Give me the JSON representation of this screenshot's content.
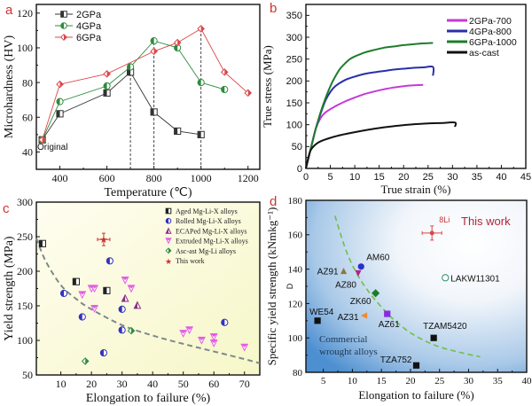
{
  "chart_data": [
    {
      "panel": "a",
      "type": "line",
      "title": "",
      "xlabel": "Temperature (℃)",
      "ylabel": "Microhardness (HV)",
      "xlim": [
        300,
        1250
      ],
      "ylim": [
        30,
        125
      ],
      "xticks": [
        400,
        600,
        800,
        1000,
        1200
      ],
      "yticks": [
        40,
        60,
        80,
        100,
        120
      ],
      "legend_position": "top-left",
      "annotation": "Original",
      "vlines": [
        700,
        800,
        1000
      ],
      "series": [
        {
          "name": "2GPa",
          "color": "#333333",
          "marker": "half-square",
          "x": [
            325,
            400,
            600,
            700,
            800,
            900,
            1000
          ],
          "y": [
            47,
            62,
            74,
            86,
            63,
            52,
            50
          ]
        },
        {
          "name": "4GPa",
          "color": "#2e8b3e",
          "marker": "half-circle",
          "x": [
            325,
            400,
            600,
            700,
            800,
            900,
            1000,
            1100
          ],
          "y": [
            47,
            69,
            78,
            89,
            104,
            100,
            80,
            76
          ]
        },
        {
          "name": "6GPa",
          "color": "#d9474a",
          "marker": "half-diamond",
          "x": [
            325,
            400,
            600,
            800,
            900,
            1000,
            1100,
            1200
          ],
          "y": [
            47,
            79,
            85,
            98,
            103,
            111,
            86,
            74
          ]
        }
      ]
    },
    {
      "panel": "b",
      "type": "line",
      "title": "",
      "xlabel": "True strain (%)",
      "ylabel": "True stress (MPa)",
      "xlim": [
        0,
        45
      ],
      "ylim": [
        0,
        375
      ],
      "xticks": [
        0,
        5,
        10,
        15,
        20,
        25,
        30,
        35,
        40,
        45
      ],
      "yticks": [
        0,
        50,
        100,
        150,
        200,
        250,
        300,
        350
      ],
      "legend_position": "top-right",
      "series": [
        {
          "name": "2GPa-700",
          "color": "#c43ad6",
          "x": [
            0,
            1,
            2,
            3,
            4,
            6,
            8,
            10,
            12,
            14,
            16,
            18,
            20,
            22,
            24
          ],
          "y": [
            0,
            45,
            90,
            115,
            128,
            142,
            153,
            162,
            170,
            176,
            181,
            185,
            188,
            190,
            191
          ]
        },
        {
          "name": "4GPa-800",
          "color": "#2a2fa8",
          "x": [
            0,
            1,
            2,
            3,
            4,
            5,
            6,
            8,
            10,
            12,
            14,
            16,
            18,
            20,
            22,
            24,
            26,
            26
          ],
          "y": [
            0,
            45,
            90,
            125,
            155,
            175,
            188,
            202,
            210,
            216,
            220,
            223,
            226,
            228,
            230,
            231,
            232,
            212
          ]
        },
        {
          "name": "6GPa-1000",
          "color": "#1e7d2a",
          "x": [
            0,
            1,
            2,
            3,
            4,
            5,
            6,
            7,
            8,
            9,
            10,
            12,
            14,
            16,
            18,
            20,
            22,
            24,
            26
          ],
          "y": [
            0,
            45,
            90,
            128,
            160,
            188,
            210,
            228,
            240,
            250,
            256,
            265,
            271,
            276,
            279,
            282,
            284,
            286,
            287
          ]
        },
        {
          "name": "as-cast",
          "color": "#111111",
          "x": [
            0,
            0.5,
            1,
            2,
            3,
            5,
            7,
            10,
            13,
            16,
            19,
            22,
            25,
            28,
            30.5,
            30.5
          ],
          "y": [
            0,
            25,
            42,
            55,
            62,
            70,
            76,
            83,
            89,
            94,
            98,
            101,
            103,
            104,
            105,
            95
          ]
        }
      ]
    },
    {
      "panel": "c",
      "type": "scatter",
      "title": "",
      "xlabel": "Elongation to failure (%)",
      "ylabel": "Yield strength (MPa)",
      "xlim": [
        2,
        75
      ],
      "ylim": [
        50,
        300
      ],
      "xticks": [
        10,
        20,
        30,
        40,
        50,
        60,
        70
      ],
      "yticks": [
        50,
        100,
        150,
        200,
        250,
        300
      ],
      "legend_position": "top-right",
      "trend_curve": {
        "x": [
          2,
          5,
          10,
          15,
          20,
          30,
          40,
          50,
          60,
          70,
          75
        ],
        "y": [
          248,
          215,
          180,
          160,
          145,
          122,
          107,
          95,
          84,
          73,
          67
        ]
      },
      "series": [
        {
          "name": "Aged Mg-Li-X alloys",
          "color": "#222222",
          "marker": "half-square",
          "x": [
            4,
            15,
            25
          ],
          "y": [
            240,
            185,
            172
          ]
        },
        {
          "name": "Rolled Mg-Li-X alloys",
          "color": "#3333bb",
          "marker": "half-circle",
          "x": [
            11,
            17,
            24,
            26,
            30,
            30,
            63.5
          ],
          "y": [
            168,
            134,
            82,
            215,
            145,
            115,
            126
          ]
        },
        {
          "name": "ECAPed Mg-Li-X alloys",
          "color": "#8a2a8a",
          "marker": "half-triangle-up",
          "x": [
            31,
            35
          ],
          "y": [
            161,
            151
          ]
        },
        {
          "name": "Extruded Mg-Li-X alloys",
          "color": "#e25be2",
          "marker": "half-triangle-down",
          "x": [
            17,
            20,
            21,
            21,
            31,
            33,
            50,
            52,
            56,
            60,
            60,
            70
          ],
          "y": [
            166,
            175,
            175,
            146,
            187,
            175,
            110,
            115,
            100,
            105,
            96,
            90
          ]
        },
        {
          "name": "Asc-ast Mg-Li alloys",
          "color": "#2e8b3e",
          "marker": "half-diamond",
          "x": [
            18,
            33
          ],
          "y": [
            70,
            114
          ]
        },
        {
          "name": "This work",
          "color": "#cc3333",
          "marker": "star-errorbar",
          "x": [
            24
          ],
          "y": [
            246
          ]
        }
      ]
    },
    {
      "panel": "d",
      "type": "scatter",
      "title": "",
      "xlabel": "Elongation to failure (%)",
      "ylabel": "Specific yield strength (kNmkg⁻¹)",
      "ylabel_extra": "D",
      "xlim": [
        2,
        40
      ],
      "ylim": [
        80,
        180
      ],
      "xticks": [
        5,
        10,
        15,
        20,
        25,
        30,
        35,
        40
      ],
      "yticks": [
        80,
        100,
        120,
        140,
        160,
        180
      ],
      "region_label": [
        "Commercial",
        "wrought alloys"
      ],
      "this_work_label": "This work",
      "trend_curve": {
        "x": [
          7,
          9,
          11,
          13,
          15,
          17,
          20,
          24,
          28,
          32
        ],
        "y": [
          171,
          150,
          136,
          126,
          118,
          111,
          103,
          96,
          92,
          89
        ]
      },
      "series": [
        {
          "name": "AM60",
          "color": "#2a2fcc",
          "marker": "circle",
          "x": 11.5,
          "y": 141.5
        },
        {
          "name": "AZ91",
          "color": "#8b7a3a",
          "marker": "triangle-up",
          "x": 8.5,
          "y": 139
        },
        {
          "name": "AZ80",
          "color": "#b0248f",
          "marker": "triangle-down",
          "x": 11,
          "y": 137.5
        },
        {
          "name": "ZK60",
          "color": "#1e7d2a",
          "marker": "diamond",
          "x": 14,
          "y": 126
        },
        {
          "name": "AZ31",
          "color": "#f08a2a",
          "marker": "triangle-left",
          "x": 12,
          "y": 113
        },
        {
          "name": "AZ61",
          "color": "#8a2be2",
          "marker": "square",
          "x": 16,
          "y": 114
        },
        {
          "name": "WE54",
          "color": "#111111",
          "marker": "square",
          "x": 4,
          "y": 110
        },
        {
          "name": "TZAM5420",
          "color": "#111111",
          "marker": "square",
          "x": 24,
          "y": 100
        },
        {
          "name": "TZA752",
          "color": "#111111",
          "marker": "square",
          "x": 21,
          "y": 84
        },
        {
          "name": "LAKW11301",
          "color": "#2e8b6e",
          "marker": "open-circle",
          "x": 26,
          "y": 135
        },
        {
          "name": "8Li",
          "color": "#d9474a",
          "marker": "plus-errorbar",
          "x": 23.7,
          "y": 161
        }
      ]
    }
  ],
  "panel_labels": [
    "a",
    "b",
    "c",
    "d"
  ]
}
